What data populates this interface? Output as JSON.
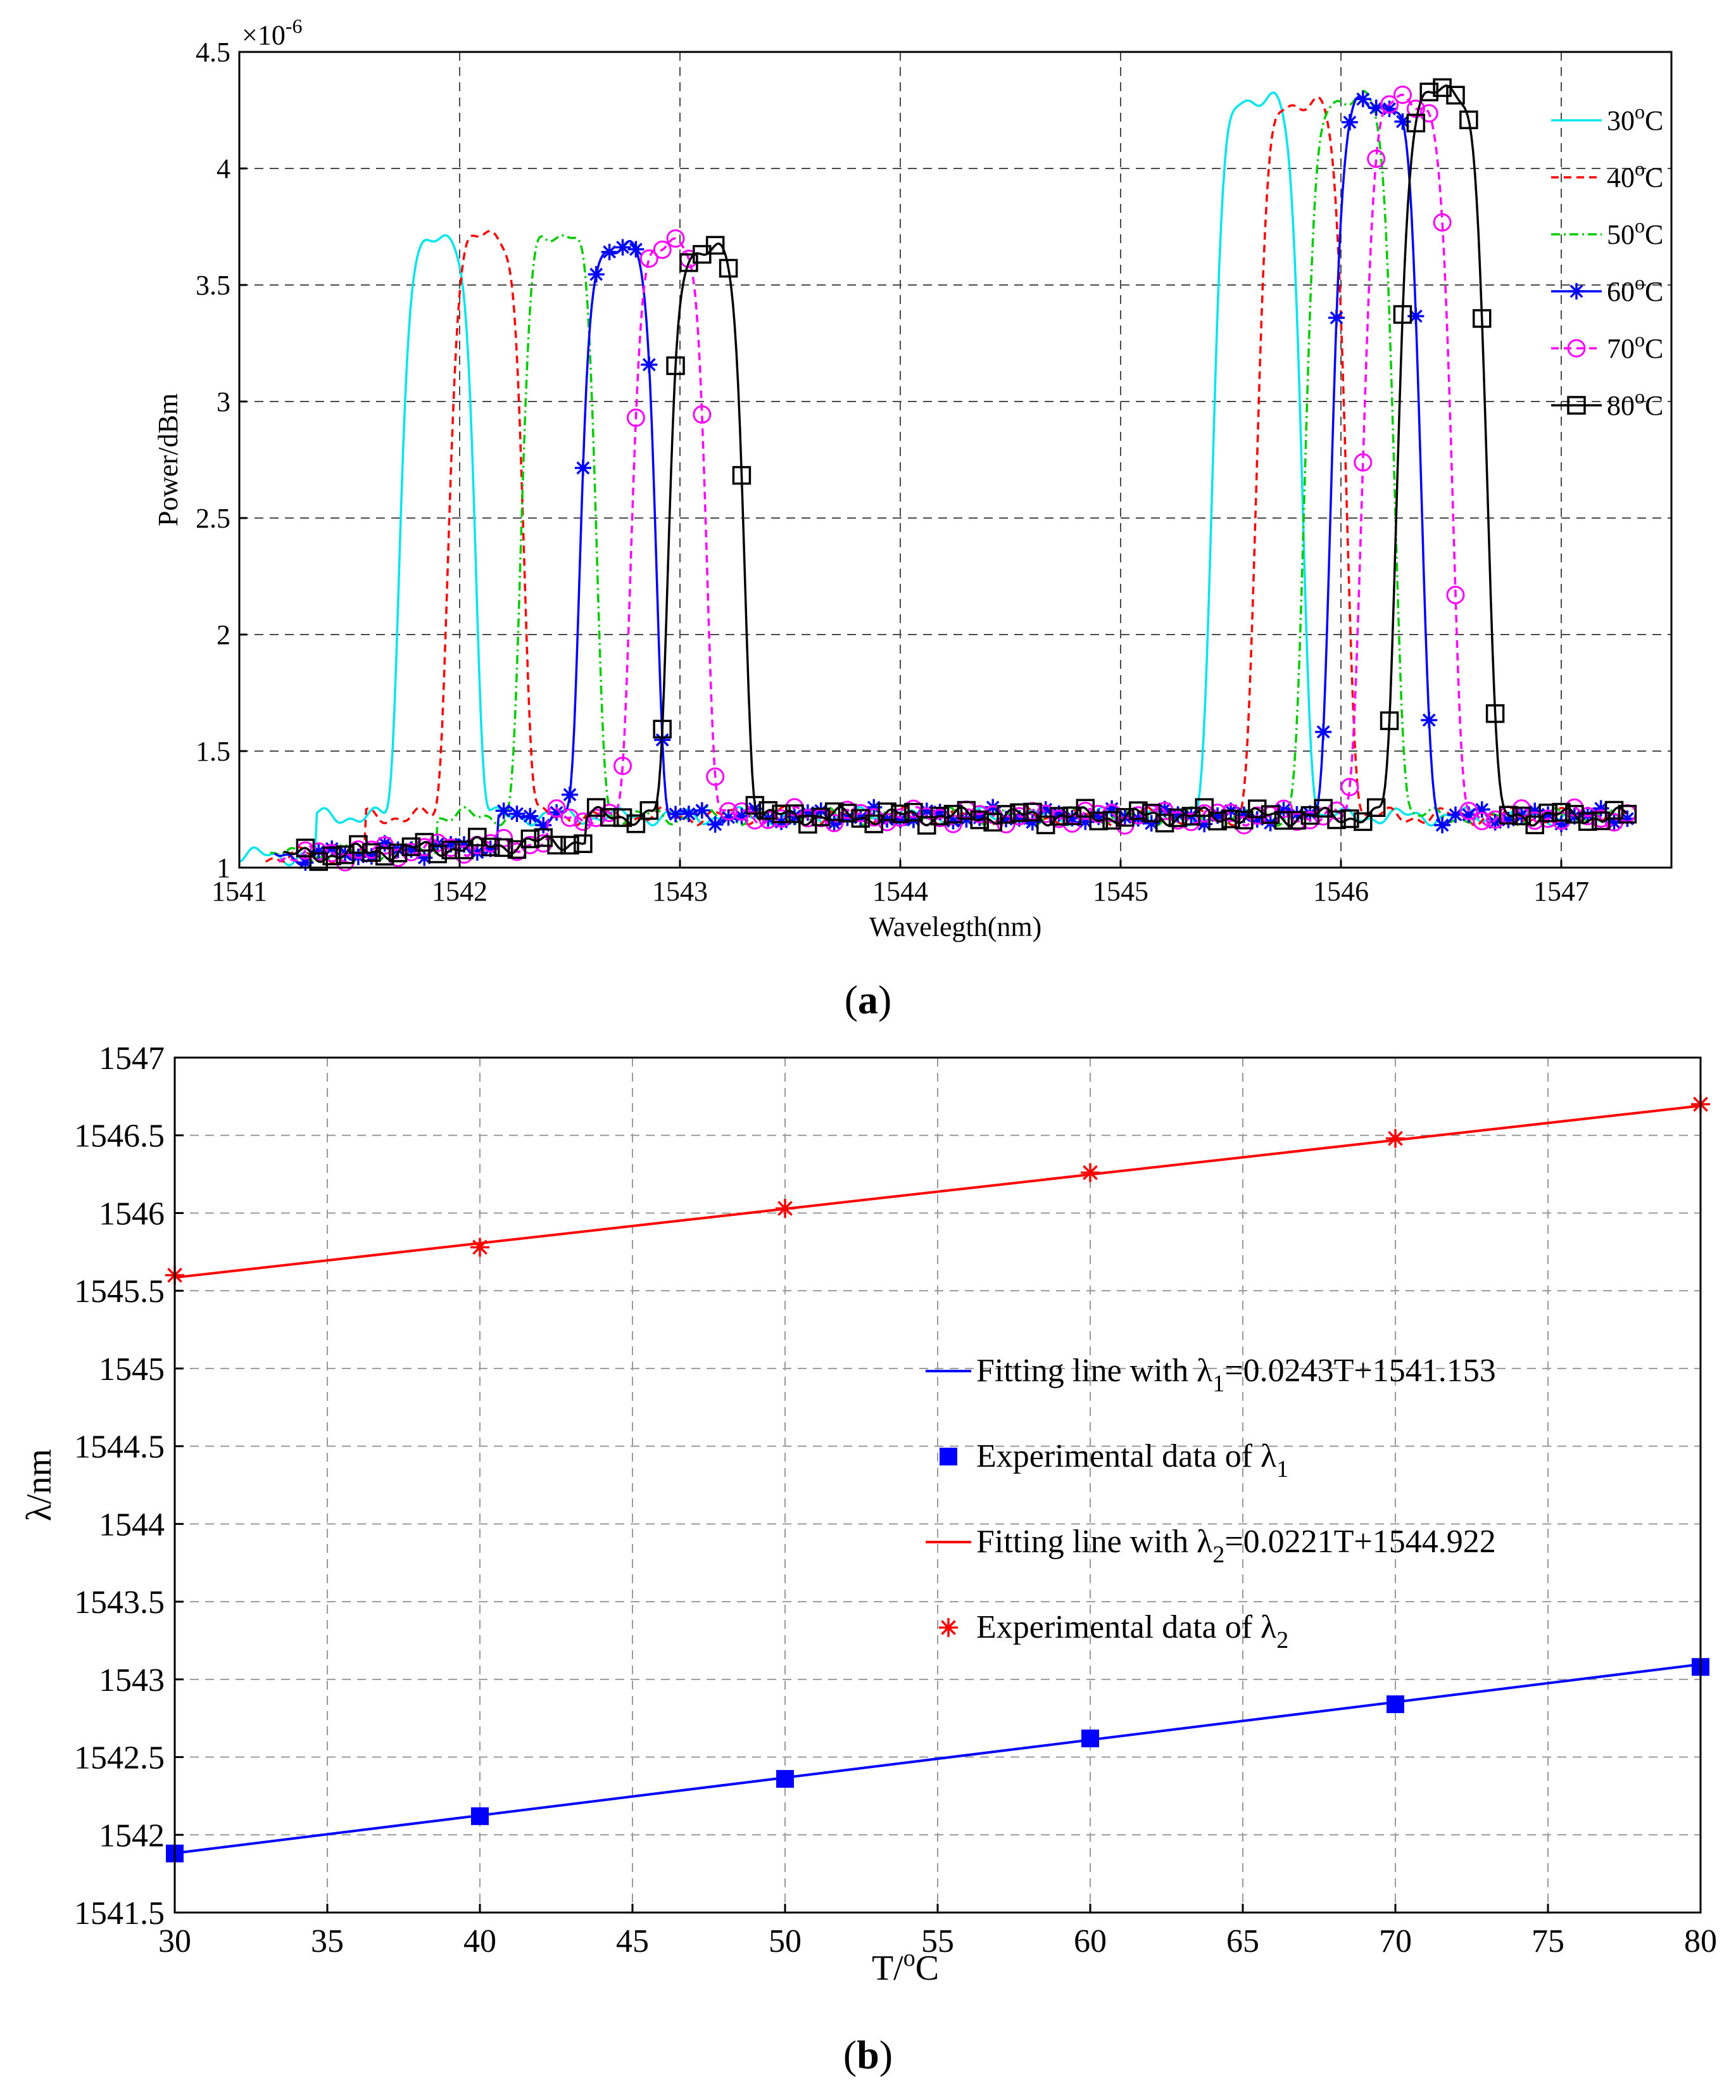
{
  "chart_data": [
    {
      "type": "line",
      "panel": "(a)",
      "caption_letter": "a",
      "xlabel": "Wavelegth(nm)",
      "ylabel": "Power/dBm",
      "y_exponent_label": "×10",
      "y_exponent": "-6",
      "xlim": [
        1541,
        1547.5
      ],
      "ylim": [
        1,
        4.5
      ],
      "xticks": [
        "1541",
        "1542",
        "1543",
        "1544",
        "1545",
        "1546",
        "1547"
      ],
      "yticks": [
        "1",
        "1.5",
        "2",
        "2.5",
        "3",
        "3.5",
        "4",
        "4.5"
      ],
      "grid": true,
      "legend_position": "top-right",
      "series": [
        {
          "name": "30",
          "label_unit": "C",
          "label_sup": "o",
          "color": "#00e5ee",
          "style": "solid",
          "marker": "none",
          "peak1": 1541.9,
          "amp1": 3.68,
          "peak2": 1545.62,
          "amp2": 4.3
        },
        {
          "name": "40",
          "label_unit": "C",
          "label_sup": "o",
          "color": "#ff0000",
          "style": "dashed",
          "marker": "none",
          "peak1": 1542.12,
          "amp1": 3.7,
          "peak2": 1545.82,
          "amp2": 4.28
        },
        {
          "name": "50",
          "label_unit": "C",
          "label_sup": "o",
          "color": "#00cc00",
          "style": "dashdot",
          "marker": "none",
          "peak1": 1542.45,
          "amp1": 3.72,
          "peak2": 1546.04,
          "amp2": 4.3
        },
        {
          "name": "60",
          "label_unit": "C",
          "label_sup": "o",
          "color": "#0000ff",
          "style": "solid",
          "marker": "star",
          "peak1": 1542.72,
          "amp1": 3.65,
          "peak2": 1546.16,
          "amp2": 4.28
        },
        {
          "name": "70",
          "label_unit": "C",
          "label_sup": "o",
          "color": "#ff00ff",
          "style": "dashed",
          "marker": "circle",
          "peak1": 1542.95,
          "amp1": 3.66,
          "peak2": 1546.3,
          "amp2": 4.28
        },
        {
          "name": "80",
          "label_unit": "C",
          "label_sup": "o",
          "color": "#000000",
          "style": "solid",
          "marker": "square",
          "peak1": 1543.12,
          "amp1": 3.64,
          "peak2": 1546.46,
          "amp2": 4.32
        }
      ]
    },
    {
      "type": "line",
      "panel": "(b)",
      "caption_letter": "b",
      "xlabel_main": "T/",
      "xlabel_sup": "o",
      "xlabel_unit": "C",
      "ylabel": "λ/nm",
      "xlim": [
        30,
        80
      ],
      "ylim": [
        1541.5,
        1547
      ],
      "xticks": [
        "30",
        "35",
        "40",
        "45",
        "50",
        "55",
        "60",
        "65",
        "70",
        "75",
        "80"
      ],
      "yticks": [
        "1541.5",
        "1542",
        "1542.5",
        "1543",
        "1543.5",
        "1544",
        "1544.5",
        "1545",
        "1545.5",
        "1546",
        "1546.5",
        "1547"
      ],
      "grid": true,
      "legend_position": "center-right",
      "x": [
        30,
        40,
        50,
        60,
        70,
        80
      ],
      "series": [
        {
          "name": "Fitting line with λ1=0.0243T+1541.153",
          "text_pre": "Fitting line with λ",
          "sub": "1",
          "text_post": "=0.0243T+1541.153",
          "kind": "fit",
          "color": "#0000ff",
          "slope": 0.0243,
          "intercept": 1541.153
        },
        {
          "name": "Experimental data of λ1",
          "text_pre": "Experimental data of λ",
          "sub": "1",
          "text_post": "",
          "kind": "data",
          "marker": "square",
          "color": "#0000ff",
          "values": [
            1541.88,
            1542.12,
            1542.36,
            1542.62,
            1542.84,
            1543.08
          ]
        },
        {
          "name": "Fitting line with λ2=0.0221T+1544.922",
          "text_pre": "Fitting line with λ",
          "sub": "2",
          "text_post": "=0.0221T+1544.922",
          "kind": "fit",
          "color": "#ff0000",
          "slope": 0.0221,
          "intercept": 1544.922
        },
        {
          "name": "Experimental data of λ2",
          "text_pre": "Experimental data of λ",
          "sub": "2",
          "text_post": "",
          "kind": "data",
          "marker": "star",
          "color": "#ff0000",
          "values": [
            1545.6,
            1545.78,
            1546.03,
            1546.26,
            1546.48,
            1546.7
          ]
        }
      ]
    }
  ]
}
